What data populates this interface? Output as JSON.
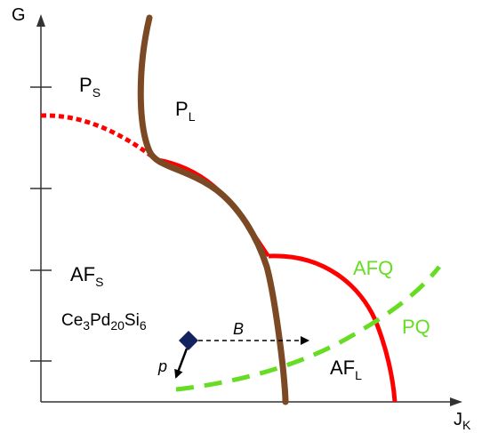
{
  "axes": {
    "y_label": "G",
    "x_label_main": "J",
    "x_label_sub": "K"
  },
  "regions": {
    "ps": {
      "main": "P",
      "sub": "S"
    },
    "pl": {
      "main": "P",
      "sub": "L"
    },
    "afs": {
      "main": "AF",
      "sub": "S"
    },
    "afl": {
      "main": "AF",
      "sub": "L"
    },
    "afq": "AFQ",
    "pq": "PQ"
  },
  "compound": {
    "parts": [
      "Ce",
      "3",
      "Pd",
      "20",
      "Si",
      "6"
    ]
  },
  "arrows": {
    "b_label": "B",
    "p_label": "p"
  },
  "colors": {
    "brown": "#7b4a24",
    "red": "#ff0000",
    "green": "#66dd22",
    "marker": "#14235e",
    "axis": "#333333"
  }
}
